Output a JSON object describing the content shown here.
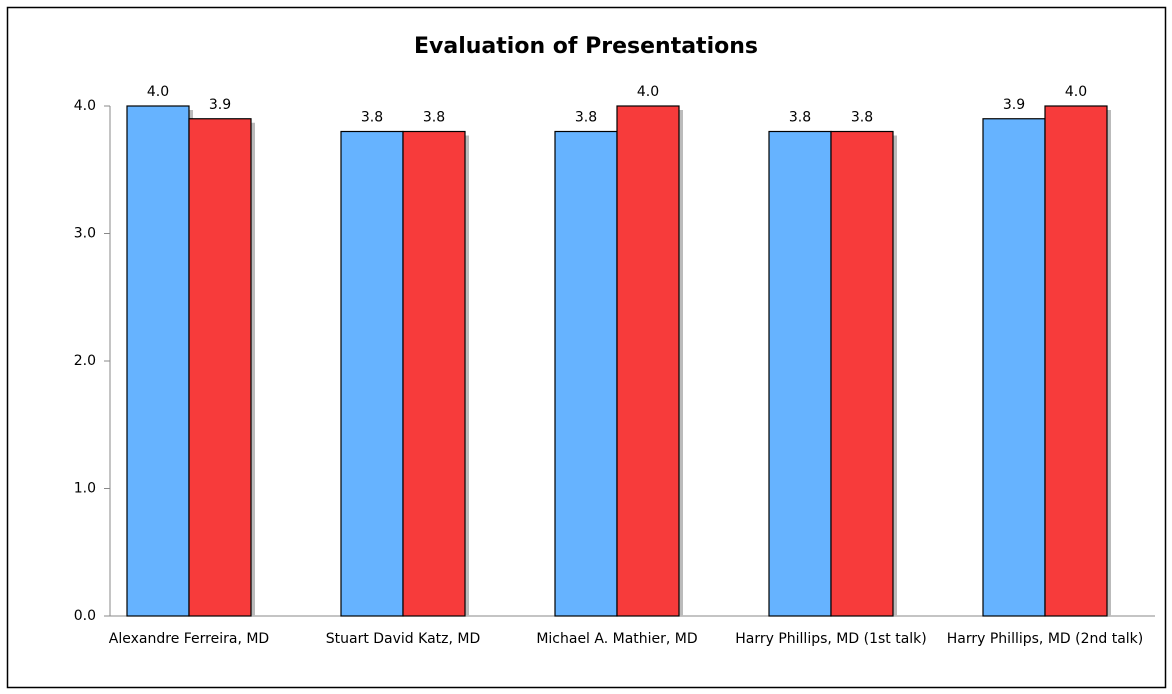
{
  "chart_data": {
    "type": "bar",
    "title": "Evaluation of Presentations",
    "categories": [
      "Alexandre Ferreira, MD",
      "Stuart David Katz, MD",
      "Michael A. Mathier, MD",
      "Harry Phillips, MD (1st talk)",
      "Harry Phillips, MD (2nd talk)"
    ],
    "series": [
      {
        "color": "#66b3ff",
        "values": [
          4.0,
          3.8,
          3.8,
          3.8,
          3.9
        ],
        "value_labels": [
          "4.0",
          "3.8",
          "3.8",
          "3.8",
          "3.9"
        ]
      },
      {
        "color": "#f73b3b",
        "values": [
          3.9,
          3.8,
          4.0,
          3.8,
          4.0
        ],
        "value_labels": [
          "3.9",
          "3.8",
          "4.0",
          "3.8",
          "4.0"
        ]
      }
    ],
    "ylim": [
      0,
      4
    ],
    "yticks": [
      {
        "value": 0,
        "label": "0.0"
      },
      {
        "value": 1,
        "label": "1.0"
      },
      {
        "value": 2,
        "label": "2.0"
      },
      {
        "value": 3,
        "label": "3.0"
      },
      {
        "value": 4,
        "label": "4.0"
      }
    ],
    "grid": false
  }
}
